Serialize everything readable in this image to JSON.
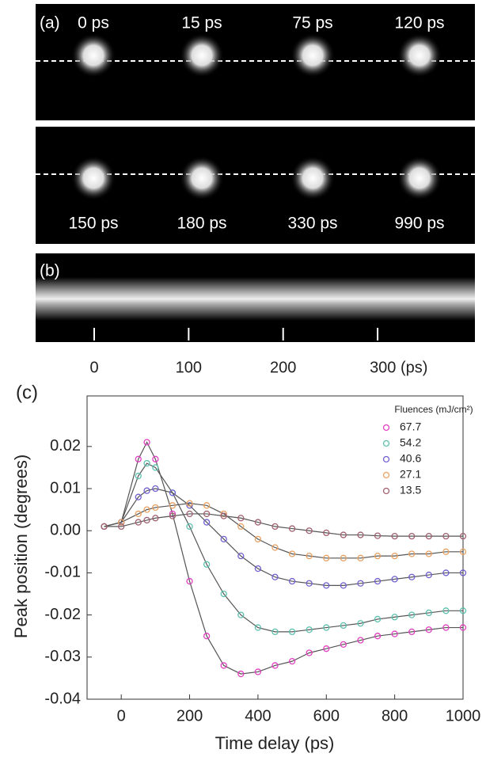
{
  "panel_a": {
    "label": "(a)",
    "frames": [
      "0 ps",
      "15 ps",
      "75 ps",
      "120 ps",
      "150 ps",
      "180 ps",
      "330 ps",
      "990 ps"
    ]
  },
  "panel_b": {
    "label": "(b)",
    "xlim": [
      -62,
      403
    ],
    "xticks": [
      0,
      100,
      200,
      {
        "value": 300,
        "label": "300 (ps)"
      }
    ]
  },
  "chart_data": {
    "type": "scatter",
    "panel_label": "(c)",
    "xlabel": "Time delay (ps)",
    "ylabel": "Peak position (degrees)",
    "legend_title": "Fluences (mJ/cm²)",
    "legend": "upper right",
    "xlim": [
      -100,
      1000
    ],
    "xticks": [
      0,
      200,
      400,
      600,
      800,
      1000
    ],
    "ylim": [
      -0.04,
      0.032
    ],
    "yticks": [
      -0.04,
      -0.03,
      -0.02,
      -0.01,
      {
        "value": 0,
        "label": "0.00"
      },
      0.01,
      0.02
    ],
    "x": [
      -50,
      0,
      50,
      75,
      100,
      150,
      200,
      250,
      300,
      350,
      400,
      450,
      500,
      550,
      600,
      650,
      700,
      750,
      800,
      850,
      900,
      950,
      1000
    ],
    "series": [
      {
        "name": "67.7",
        "color": "#e040c0",
        "values": [
          0.001,
          0.002,
          0.017,
          0.021,
          0.017,
          0.004,
          -0.012,
          -0.025,
          -0.032,
          -0.034,
          -0.0335,
          -0.032,
          -0.031,
          -0.029,
          -0.028,
          -0.027,
          -0.026,
          -0.025,
          -0.0245,
          -0.024,
          -0.0235,
          -0.023,
          -0.023
        ]
      },
      {
        "name": "54.2",
        "color": "#5cc0ae",
        "values": [
          0.001,
          0.002,
          0.013,
          0.016,
          0.015,
          0.009,
          0.001,
          -0.008,
          -0.015,
          -0.02,
          -0.023,
          -0.024,
          -0.024,
          -0.0235,
          -0.023,
          -0.0225,
          -0.022,
          -0.021,
          -0.0205,
          -0.02,
          -0.0195,
          -0.019,
          -0.019
        ]
      },
      {
        "name": "40.6",
        "color": "#7060d0",
        "values": [
          0.001,
          0.002,
          0.008,
          0.0095,
          0.01,
          0.009,
          0.006,
          0.002,
          -0.002,
          -0.006,
          -0.009,
          -0.011,
          -0.012,
          -0.0125,
          -0.013,
          -0.013,
          -0.0125,
          -0.012,
          -0.0115,
          -0.011,
          -0.0105,
          -0.01,
          -0.01
        ]
      },
      {
        "name": "27.1",
        "color": "#e8a060",
        "values": [
          0.001,
          0.002,
          0.004,
          0.005,
          0.0055,
          0.006,
          0.0065,
          0.006,
          0.004,
          0.001,
          -0.002,
          -0.004,
          -0.0055,
          -0.006,
          -0.0065,
          -0.0065,
          -0.0065,
          -0.006,
          -0.006,
          -0.0055,
          -0.0055,
          -0.005,
          -0.005
        ]
      },
      {
        "name": "13.5",
        "color": "#a06070",
        "values": [
          0.001,
          0.001,
          0.002,
          0.0025,
          0.003,
          0.0035,
          0.004,
          0.004,
          0.0035,
          0.003,
          0.002,
          0.001,
          0.0005,
          0,
          -0.0005,
          -0.001,
          -0.001,
          -0.0012,
          -0.0013,
          -0.0013,
          -0.0013,
          -0.0013,
          -0.0013
        ]
      }
    ]
  }
}
